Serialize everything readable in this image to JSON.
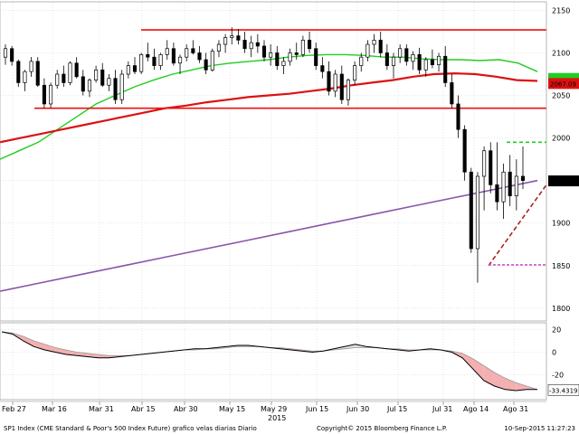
{
  "footer": {
    "source": "SP1 Index (CME Standard & Poor's 500 Index Future) grafico velas diarias  Diario",
    "copyright": "Copyright© 2015 Bloomberg Finance L.P.",
    "timestamp": "10-Sep-2015 11:27:23"
  },
  "colors": {
    "candle": "#000000",
    "ma_short": "#22cc22",
    "ma_mid": "#dd1111",
    "ma_long": "#8855aa",
    "resistance": "#ee1111",
    "support": "#ee1111",
    "channel_top": "#22cc22",
    "trend": "#aa2222",
    "channel_bottom": "#cc55cc",
    "osc_fill": "#f4b0b0",
    "osc_fill_pos": "#dddddd"
  },
  "chart_data": [
    {
      "type": "candlestick",
      "title": "",
      "x_ticks": [
        "Feb 27",
        "Mar 16",
        "Mar 31",
        "Abr 15",
        "Abr 30",
        "May 15",
        "May 29",
        "Jun 15",
        "Jun 30",
        "Jul 15",
        "Jul 31",
        "Ago 14",
        "Ago 31"
      ],
      "x_year_label": "2015",
      "y_ticks": [
        1800,
        1850,
        1900,
        1950,
        2000,
        2050,
        2100,
        2150
      ],
      "ylim": [
        1785,
        2160
      ],
      "last_value_label": "1949.60",
      "ma_labels": [
        "2067.09"
      ],
      "candles": [
        [
          2095,
          2110,
          2086,
          2105
        ],
        [
          2105,
          2108,
          2085,
          2090
        ],
        [
          2090,
          2092,
          2060,
          2065
        ],
        [
          2065,
          2080,
          2055,
          2078
        ],
        [
          2078,
          2095,
          2072,
          2090
        ],
        [
          2090,
          2095,
          2060,
          2062
        ],
        [
          2062,
          2070,
          2035,
          2040
        ],
        [
          2040,
          2065,
          2035,
          2062
        ],
        [
          2062,
          2080,
          2058,
          2075
        ],
        [
          2075,
          2085,
          2060,
          2065
        ],
        [
          2065,
          2090,
          2062,
          2088
        ],
        [
          2088,
          2095,
          2070,
          2072
        ],
        [
          2072,
          2080,
          2050,
          2055
        ],
        [
          2055,
          2070,
          2048,
          2068
        ],
        [
          2068,
          2085,
          2065,
          2080
        ],
        [
          2080,
          2088,
          2060,
          2062
        ],
        [
          2062,
          2075,
          2055,
          2070
        ],
        [
          2070,
          2080,
          2040,
          2045
        ],
        [
          2045,
          2080,
          2040,
          2075
        ],
        [
          2075,
          2090,
          2070,
          2085
        ],
        [
          2085,
          2095,
          2075,
          2078
        ],
        [
          2078,
          2100,
          2075,
          2098
        ],
        [
          2098,
          2112,
          2090,
          2095
        ],
        [
          2095,
          2105,
          2080,
          2085
        ],
        [
          2085,
          2100,
          2080,
          2098
        ],
        [
          2098,
          2115,
          2092,
          2105
        ],
        [
          2105,
          2112,
          2085,
          2088
        ],
        [
          2088,
          2098,
          2075,
          2095
        ],
        [
          2095,
          2110,
          2090,
          2105
        ],
        [
          2105,
          2115,
          2098,
          2100
        ],
        [
          2100,
          2108,
          2088,
          2092
        ],
        [
          2092,
          2100,
          2075,
          2080
        ],
        [
          2080,
          2105,
          2078,
          2102
        ],
        [
          2102,
          2115,
          2095,
          2110
        ],
        [
          2110,
          2122,
          2100,
          2118
        ],
        [
          2118,
          2130,
          2110,
          2120
        ],
        [
          2120,
          2128,
          2110,
          2115
        ],
        [
          2115,
          2125,
          2100,
          2105
        ],
        [
          2105,
          2120,
          2095,
          2112
        ],
        [
          2112,
          2122,
          2100,
          2108
        ],
        [
          2108,
          2115,
          2090,
          2095
        ],
        [
          2095,
          2110,
          2085,
          2100
        ],
        [
          2100,
          2108,
          2080,
          2085
        ],
        [
          2085,
          2095,
          2075,
          2090
        ],
        [
          2090,
          2105,
          2085,
          2100
        ],
        [
          2100,
          2112,
          2092,
          2098
        ],
        [
          2098,
          2120,
          2095,
          2115
        ],
        [
          2115,
          2125,
          2100,
          2105
        ],
        [
          2105,
          2112,
          2080,
          2085
        ],
        [
          2085,
          2095,
          2070,
          2078
        ],
        [
          2078,
          2090,
          2050,
          2055
        ],
        [
          2055,
          2080,
          2048,
          2075
        ],
        [
          2075,
          2085,
          2040,
          2045
        ],
        [
          2045,
          2070,
          2038,
          2068
        ],
        [
          2068,
          2090,
          2062,
          2085
        ],
        [
          2085,
          2100,
          2078,
          2095
        ],
        [
          2095,
          2115,
          2090,
          2110
        ],
        [
          2110,
          2122,
          2100,
          2115
        ],
        [
          2115,
          2125,
          2095,
          2100
        ],
        [
          2100,
          2110,
          2080,
          2085
        ],
        [
          2085,
          2100,
          2070,
          2095
        ],
        [
          2095,
          2110,
          2088,
          2105
        ],
        [
          2105,
          2110,
          2085,
          2090
        ],
        [
          2090,
          2102,
          2080,
          2098
        ],
        [
          2098,
          2106,
          2075,
          2080
        ],
        [
          2080,
          2095,
          2072,
          2092
        ],
        [
          2092,
          2104,
          2082,
          2086
        ],
        [
          2086,
          2100,
          2078,
          2096
        ],
        [
          2096,
          2108,
          2060,
          2065
        ],
        [
          2065,
          2075,
          2035,
          2040
        ],
        [
          2040,
          2050,
          2000,
          2010
        ],
        [
          2010,
          2015,
          1950,
          1960
        ],
        [
          1960,
          1965,
          1865,
          1870
        ],
        [
          1870,
          1960,
          1830,
          1955
        ],
        [
          1955,
          1990,
          1915,
          1985
        ],
        [
          1985,
          1995,
          1935,
          1945
        ],
        [
          1945,
          1995,
          1915,
          1925
        ],
        [
          1925,
          1970,
          1905,
          1960
        ],
        [
          1960,
          1980,
          1920,
          1932
        ],
        [
          1932,
          1975,
          1915,
          1955
        ],
        [
          1955,
          1990,
          1940,
          1950
        ]
      ],
      "lines": [
        {
          "values": [
            1975,
            1985,
            1995,
            2010,
            2025,
            2040,
            2050,
            2060,
            2068,
            2075,
            2080,
            2085,
            2088,
            2090,
            2092,
            2095,
            2097,
            2098,
            2098,
            2097,
            2095,
            2095,
            2093,
            2092,
            2092,
            2091,
            2092,
            2088,
            2078
          ]
        },
        {
          "values": [
            1995,
            2000,
            2005,
            2010,
            2015,
            2020,
            2025,
            2030,
            2035,
            2038,
            2042,
            2045,
            2048,
            2050,
            2052,
            2055,
            2058,
            2062,
            2065,
            2068,
            2072,
            2075,
            2076,
            2075,
            2072,
            2068,
            2067
          ]
        },
        {
          "values": [
            1820,
            1830,
            1840,
            1850,
            1860,
            1870,
            1880,
            1890,
            1900,
            1910,
            1920,
            1930,
            1940,
            1950
          ]
        },
        {
          "values": [
            2127,
            2127
          ]
        },
        {
          "values": [
            2035,
            2035
          ]
        },
        {
          "values": [
            1995,
            1995
          ]
        },
        {
          "values": [
            1850,
            1945
          ]
        },
        {
          "values": [
            1851,
            1851
          ]
        }
      ]
    },
    {
      "type": "line",
      "title": "",
      "y_ticks": [
        20,
        0,
        -20
      ],
      "ylim": [
        -42,
        26
      ],
      "last_value_label": "-33.4319",
      "series": [
        {
          "values": [
            18,
            16,
            10,
            5,
            2,
            0,
            -2,
            -3,
            -4,
            -5,
            -5,
            -4,
            -3,
            -2,
            -1,
            0,
            1,
            2,
            3,
            3,
            4,
            5,
            6,
            6,
            5,
            4,
            3,
            2,
            1,
            0,
            1,
            3,
            5,
            7,
            5,
            4,
            3,
            2,
            1,
            2,
            3,
            2,
            0,
            -5,
            -15,
            -25,
            -30,
            -33,
            -34,
            -33,
            -33
          ]
        },
        {
          "values": [
            18,
            17,
            14,
            10,
            7,
            4,
            2,
            0,
            -1,
            -2,
            -3,
            -3,
            -3,
            -2,
            -1,
            0,
            1,
            2,
            2,
            3,
            3,
            4,
            5,
            5,
            5,
            4,
            4,
            3,
            2,
            1,
            1,
            2,
            3,
            4,
            4,
            4,
            3,
            3,
            2,
            2,
            2,
            2,
            1,
            -1,
            -6,
            -12,
            -18,
            -23,
            -27,
            -30,
            -33
          ]
        }
      ]
    }
  ]
}
